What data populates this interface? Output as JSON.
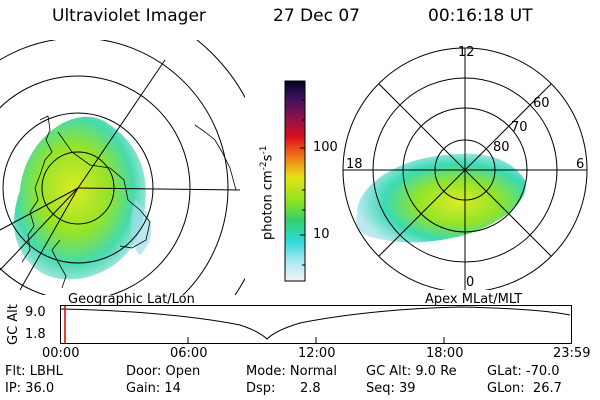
{
  "header": {
    "instrument": "Ultraviolet Imager",
    "date": "27 Dec 07",
    "time": "00:16:18 UT"
  },
  "colorbar": {
    "unit_label": "photon cm",
    "unit_exp": "-2",
    "unit_s": "s",
    "unit_s_exp": "-1",
    "ticks": [
      "100",
      "10"
    ]
  },
  "left_panel": {
    "label": "Geographic Lat/Lon"
  },
  "right_panel": {
    "label": "Apex MLat/MLT",
    "mlt_labels": {
      "top": "12",
      "left": "18",
      "right": "6",
      "bottom": "0"
    },
    "mlat_labels": [
      "60",
      "70",
      "80"
    ]
  },
  "timeline": {
    "ylabel": "GC Alt",
    "ymax": "9.0",
    "ymin": "1.8",
    "xticks": [
      "00:00",
      "06:00",
      "12:00",
      "18:00",
      "23:59"
    ]
  },
  "footer": {
    "flt": "Flt: LBHL",
    "ip": "IP: 36.0",
    "door": "Door: Open",
    "gain": "Gain: 14",
    "mode": "Mode: Normal",
    "dsp": "Dsp:",
    "dsp_val": "2.8",
    "gcalt": "GC Alt: 9.0 Re",
    "seq": "Seq: 39",
    "glat": "GLat: -70.0",
    "glon": "GLon:  26.7"
  },
  "colors": {
    "aurora_green": "#8ee21e",
    "aurora_yellow": "#d8ea18",
    "aurora_cyan": "#30d8d8",
    "marker_red": "#e00000"
  }
}
